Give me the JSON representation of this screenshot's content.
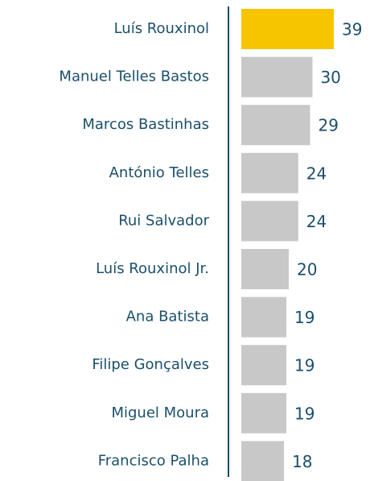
{
  "chart_data": {
    "type": "bar",
    "orientation": "horizontal",
    "categories": [
      "Luís Rouxinol",
      "Manuel Telles Bastos",
      "Marcos Bastinhas",
      "António Telles",
      "Rui Salvador",
      "Luís Rouxinol Jr.",
      "Ana Batista",
      "Filipe Gonçalves",
      "Miguel Moura",
      "Francisco Palha"
    ],
    "values": [
      39,
      30,
      29,
      24,
      24,
      20,
      19,
      19,
      19,
      18
    ],
    "colors": [
      "#f7c400",
      "#c8c8c8",
      "#c8c8c8",
      "#c8c8c8",
      "#c8c8c8",
      "#c8c8c8",
      "#c8c8c8",
      "#c8c8c8",
      "#c8c8c8",
      "#c8c8c8"
    ]
  }
}
